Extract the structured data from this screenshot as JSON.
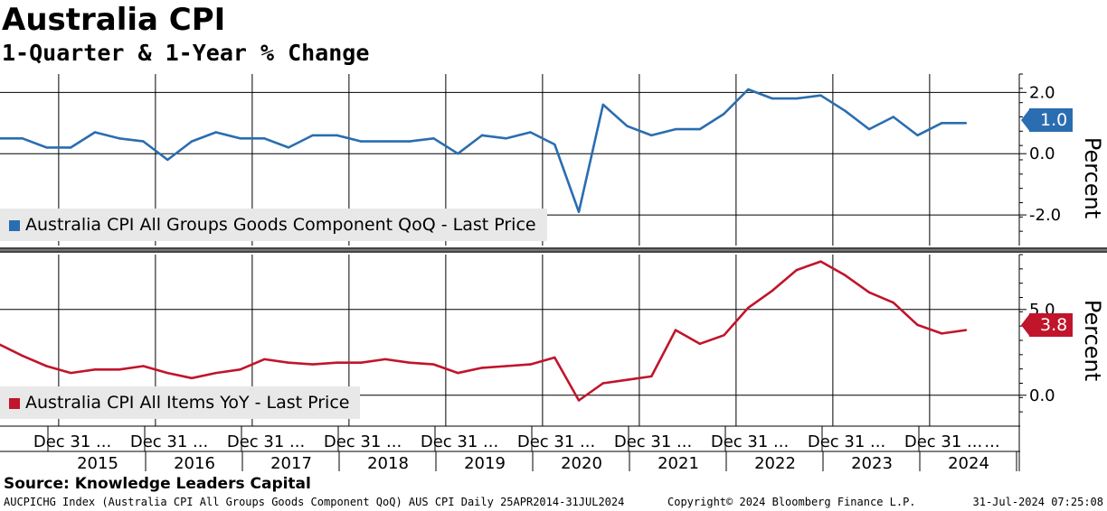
{
  "title": "Australia CPI",
  "subtitle": "1-Quarter & 1-Year % Change",
  "source": "Source: Knowledge Leaders Capital",
  "footer": {
    "left": "AUCPICHG Index (Australia CPI All Groups Goods Component QoQ) AUS CPI  Daily 25APR2014-31JUL2024",
    "center": "Copyright© 2024 Bloomberg Finance L.P.",
    "right": "31-Jul-2024 07:25:08"
  },
  "colors": {
    "top_series": "#2a6db0",
    "bottom_series": "#c0152a"
  },
  "chart_data": [
    {
      "type": "line",
      "series": [
        {
          "name": "Australia CPI All Groups Goods Component QoQ - Last Price",
          "x": [
            "2014-06",
            "2014-09",
            "2014-12",
            "2015-03",
            "2015-06",
            "2015-09",
            "2015-12",
            "2016-03",
            "2016-06",
            "2016-09",
            "2016-12",
            "2017-03",
            "2017-06",
            "2017-09",
            "2017-12",
            "2018-03",
            "2018-06",
            "2018-09",
            "2018-12",
            "2019-03",
            "2019-06",
            "2019-09",
            "2019-12",
            "2020-03",
            "2020-06",
            "2020-09",
            "2020-12",
            "2021-03",
            "2021-06",
            "2021-09",
            "2021-12",
            "2022-03",
            "2022-06",
            "2022-09",
            "2022-12",
            "2023-03",
            "2023-06",
            "2023-09",
            "2023-12",
            "2024-03",
            "2024-06"
          ],
          "values": [
            0.5,
            0.5,
            0.2,
            0.2,
            0.7,
            0.5,
            0.4,
            -0.2,
            0.4,
            0.7,
            0.5,
            0.5,
            0.2,
            0.6,
            0.6,
            0.4,
            0.4,
            0.4,
            0.5,
            0.0,
            0.6,
            0.5,
            0.7,
            0.3,
            -1.9,
            1.6,
            0.9,
            0.6,
            0.8,
            0.8,
            1.3,
            2.1,
            1.8,
            1.8,
            1.9,
            1.4,
            0.8,
            1.2,
            0.6,
            1.0,
            1.0
          ]
        }
      ],
      "last_value_label": "1.0",
      "yticks": [
        "2.0",
        "0.0",
        "-2.0"
      ],
      "ylabel": "Percent",
      "ylim": [
        -3.0,
        2.6
      ]
    },
    {
      "type": "line",
      "series": [
        {
          "name": "Australia CPI All Items YoY - Last Price",
          "x": [
            "2014-06",
            "2014-09",
            "2014-12",
            "2015-03",
            "2015-06",
            "2015-09",
            "2015-12",
            "2016-03",
            "2016-06",
            "2016-09",
            "2016-12",
            "2017-03",
            "2017-06",
            "2017-09",
            "2017-12",
            "2018-03",
            "2018-06",
            "2018-09",
            "2018-12",
            "2019-03",
            "2019-06",
            "2019-09",
            "2019-12",
            "2020-03",
            "2020-06",
            "2020-09",
            "2020-12",
            "2021-03",
            "2021-06",
            "2021-09",
            "2021-12",
            "2022-03",
            "2022-06",
            "2022-09",
            "2022-12",
            "2023-03",
            "2023-06",
            "2023-09",
            "2023-12",
            "2024-03",
            "2024-06"
          ],
          "values": [
            3.0,
            2.3,
            1.7,
            1.3,
            1.5,
            1.5,
            1.7,
            1.3,
            1.0,
            1.3,
            1.5,
            2.1,
            1.9,
            1.8,
            1.9,
            1.9,
            2.1,
            1.9,
            1.8,
            1.3,
            1.6,
            1.7,
            1.8,
            2.2,
            -0.3,
            0.7,
            0.9,
            1.1,
            3.8,
            3.0,
            3.5,
            5.1,
            6.1,
            7.3,
            7.8,
            7.0,
            6.0,
            5.4,
            4.1,
            3.6,
            3.8
          ]
        }
      ],
      "last_value_label": "3.8",
      "yticks": [
        "5.0",
        "0.0"
      ],
      "ylabel": "Percent",
      "ylim": [
        -1.8,
        8.2
      ]
    }
  ],
  "x_axis": {
    "tick_labels": [
      "Dec 31 ...",
      "Dec 31 ...",
      "Dec 31 ...",
      "Dec 31 ...",
      "Dec 31 ...",
      "Dec 31 ...",
      "Dec 31 ...",
      "Dec 31 ...",
      "Dec 31 ...",
      "Dec 31 ..."
    ],
    "trailing_label": "...",
    "years": [
      "2015",
      "2016",
      "2017",
      "2018",
      "2019",
      "2020",
      "2021",
      "2022",
      "2023",
      "2024"
    ]
  }
}
